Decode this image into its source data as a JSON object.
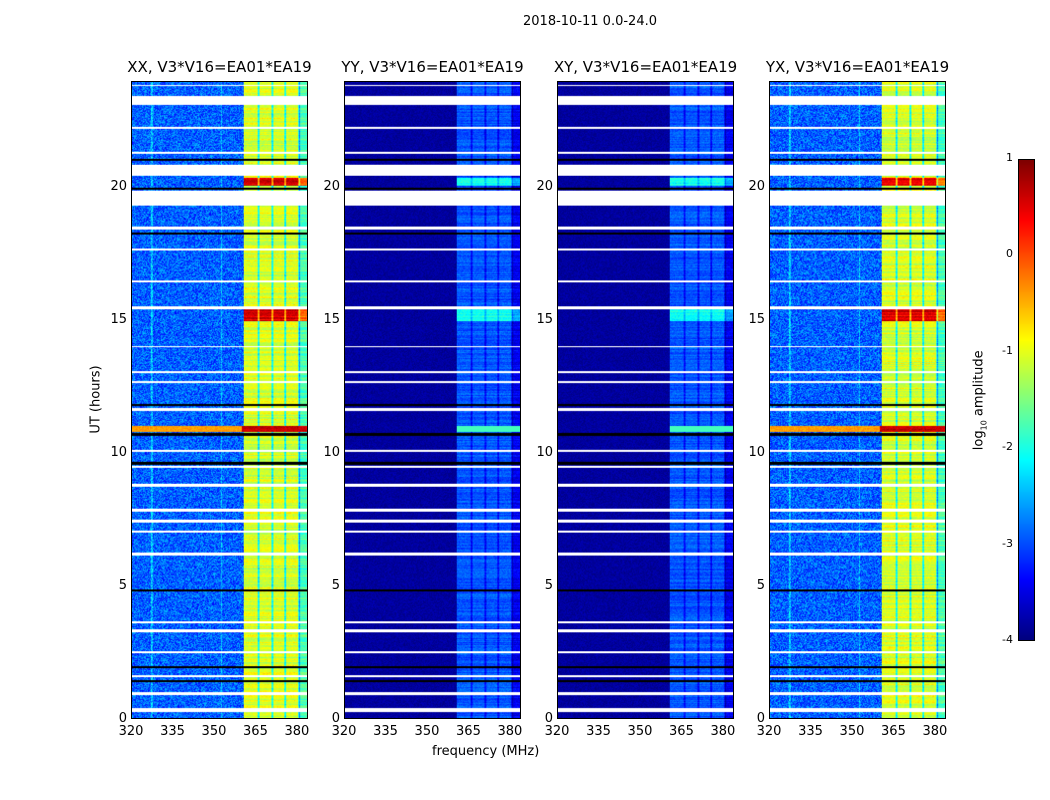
{
  "suptitle": "2018-10-11 0.0-24.0",
  "chart_data": {
    "type": "heatmap",
    "title": "2018-10-11 0.0-24.0",
    "xlabel": "frequency (MHz)",
    "ylabel": "UT (hours)",
    "xlim": [
      320,
      384
    ],
    "ylim": [
      0,
      24
    ],
    "xticks": [
      320,
      335,
      350,
      365,
      380
    ],
    "yticks": [
      0,
      5,
      10,
      15,
      20
    ],
    "colorbar": {
      "label_prefix": "log",
      "label_sub": "10",
      "label_suffix": " amplitude",
      "range": [
        -4,
        1
      ],
      "ticks": [
        1,
        0,
        -1,
        -2,
        -3,
        -4
      ],
      "colormap": "jet"
    },
    "band_mhz": [
      360.5,
      384
    ],
    "band_subchannel_edges_mhz": [
      366,
      371,
      376,
      381
    ],
    "flagged_rows_hours": [
      [
        0.25,
        0.4
      ],
      [
        0.9,
        1.0
      ],
      [
        1.55,
        1.65
      ],
      [
        2.45,
        2.55
      ],
      [
        3.25,
        3.35
      ],
      [
        3.6,
        3.68
      ],
      [
        6.15,
        6.25
      ],
      [
        7.0,
        7.08
      ],
      [
        7.4,
        7.5
      ],
      [
        7.8,
        7.9
      ],
      [
        8.75,
        8.85
      ],
      [
        9.45,
        9.55
      ],
      [
        10.05,
        10.12
      ],
      [
        11.6,
        11.7
      ],
      [
        12.65,
        12.75
      ],
      [
        13.05,
        13.12
      ],
      [
        14.0,
        14.06
      ],
      [
        15.45,
        15.55
      ],
      [
        16.45,
        16.52
      ],
      [
        17.65,
        17.72
      ],
      [
        18.45,
        18.55
      ],
      [
        19.35,
        19.9
      ],
      [
        20.5,
        20.9
      ],
      [
        21.3,
        21.38
      ],
      [
        22.25,
        22.32
      ],
      [
        23.15,
        23.5
      ],
      [
        23.85,
        23.92
      ]
    ],
    "dropout_rows_hours": [
      [
        1.38,
        1.45
      ],
      [
        1.9,
        1.98
      ],
      [
        4.8,
        4.86
      ],
      [
        9.58,
        9.68
      ],
      [
        10.65,
        10.78
      ],
      [
        11.78,
        11.86
      ],
      [
        18.25,
        18.35
      ],
      [
        19.95,
        20.05
      ],
      [
        21.05,
        21.12
      ]
    ],
    "rfi_bursts_hours": [
      [
        10.8,
        11.05
      ],
      [
        15.0,
        15.5
      ],
      [
        20.1,
        20.4
      ]
    ],
    "panels": [
      {
        "title": "XX, V3*V16=EA01*EA19",
        "background_log_amp": -2.9,
        "band_log_amp": -1.3
      },
      {
        "title": "YY, V3*V16=EA01*EA19",
        "background_log_amp": -3.85,
        "band_log_amp": -3.1
      },
      {
        "title": "XY, V3*V16=EA01*EA19",
        "background_log_amp": -3.85,
        "band_log_amp": -3.1
      },
      {
        "title": "YX, V3*V16=EA01*EA19",
        "background_log_amp": -2.9,
        "band_log_amp": -1.3
      }
    ]
  }
}
